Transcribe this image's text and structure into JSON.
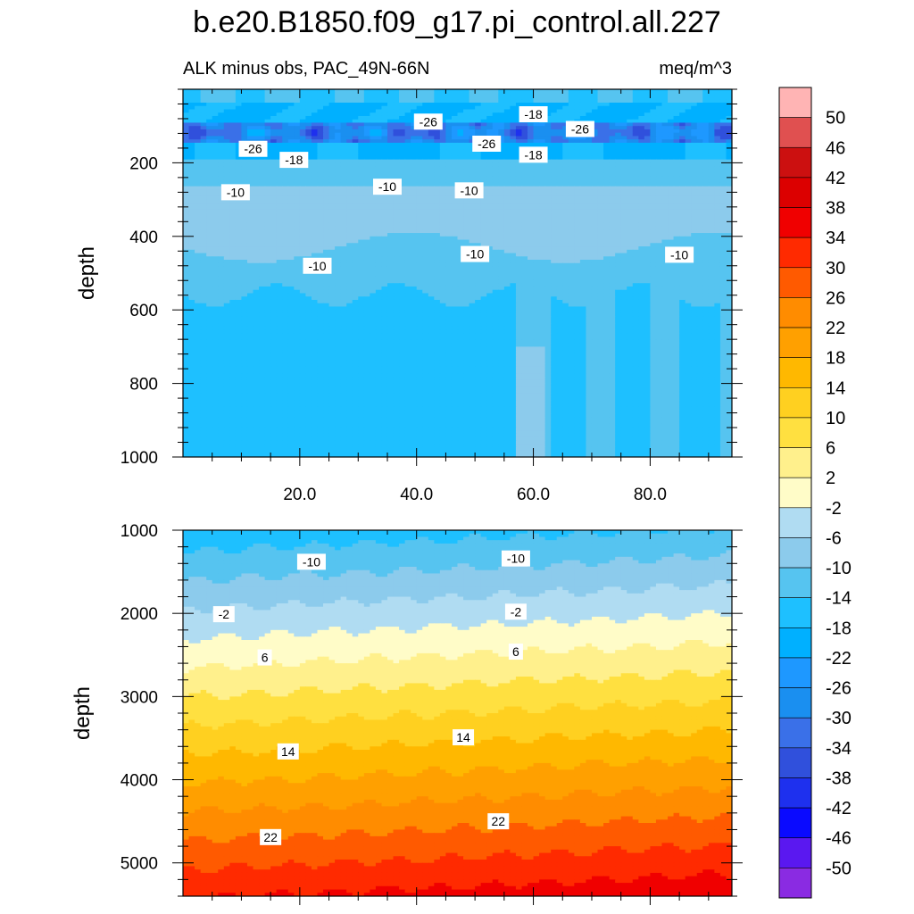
{
  "chart_data": {
    "type": "contour",
    "title": "b.e20.B1850.f09_g17.pi_control.all.227",
    "subtitle_left": "ALK minus obs, PAC_49N-66N",
    "subtitle_right": "meq/m^3",
    "colorbar": {
      "levels": [
        -50,
        -46,
        -42,
        -38,
        -34,
        -30,
        -26,
        -22,
        -18,
        -14,
        -10,
        -6,
        -2,
        2,
        6,
        10,
        14,
        18,
        22,
        26,
        30,
        34,
        38,
        42,
        46,
        50
      ],
      "level_labels": [
        "-50",
        "-46",
        "-42",
        "-38",
        "-34",
        "-30",
        "-26",
        "-22",
        "-18",
        "-14",
        "-10",
        "-6",
        "-2",
        "2",
        "6",
        "10",
        "14",
        "18",
        "22",
        "26",
        "30",
        "34",
        "38",
        "42",
        "46",
        "50"
      ],
      "colors": [
        "#8a2be2",
        "#5a18f0",
        "#0a0aff",
        "#1e30ee",
        "#3050dc",
        "#3a70e8",
        "#1a8ff0",
        "#1e98ff",
        "#00b0ff",
        "#1ec0ff",
        "#56c4f0",
        "#8ccbec",
        "#b0dcf2",
        "#fffcc8",
        "#fff08c",
        "#ffe040",
        "#ffd020",
        "#ffb800",
        "#ffa000",
        "#ff8c00",
        "#ff5a00",
        "#ff2a00",
        "#f00000",
        "#dc0000",
        "#cc1010",
        "#e05050",
        "#ffb4b4"
      ]
    },
    "panels": [
      {
        "position": "top",
        "xlabel": "",
        "ylabel": "depth",
        "x_range": [
          0,
          94
        ],
        "x_ticks": [
          20,
          40,
          60,
          80
        ],
        "x_tick_labels": [
          "20.0",
          "40.0",
          "60.0",
          "80.0"
        ],
        "y_range": [
          0,
          1000
        ],
        "y_ticks": [
          200,
          400,
          600,
          800,
          1000
        ],
        "y_tick_labels": [
          "200",
          "400",
          "600",
          "800",
          "1000"
        ],
        "contour_labels": [
          {
            "text": "-26",
            "x": 42,
            "y": 88
          },
          {
            "text": "-18",
            "x": 60,
            "y": 68
          },
          {
            "text": "-26",
            "x": 68,
            "y": 108
          },
          {
            "text": "-26",
            "x": 12,
            "y": 162
          },
          {
            "text": "-26",
            "x": 52,
            "y": 148
          },
          {
            "text": "-18",
            "x": 19,
            "y": 192
          },
          {
            "text": "-18",
            "x": 60,
            "y": 178
          },
          {
            "text": "-10",
            "x": 9,
            "y": 280
          },
          {
            "text": "-10",
            "x": 35,
            "y": 265
          },
          {
            "text": "-10",
            "x": 49,
            "y": 275
          },
          {
            "text": "-10",
            "x": 23,
            "y": 480
          },
          {
            "text": "-10",
            "x": 50,
            "y": 448
          },
          {
            "text": "-10",
            "x": 85,
            "y": 450
          }
        ]
      },
      {
        "position": "bottom",
        "xlabel": "",
        "ylabel": "depth",
        "x_range": [
          0,
          94
        ],
        "x_ticks": [
          20,
          40,
          60,
          80
        ],
        "y_range": [
          1000,
          5400
        ],
        "y_ticks": [
          1000,
          2000,
          3000,
          4000,
          5000
        ],
        "y_tick_labels": [
          "1000",
          "2000",
          "3000",
          "4000",
          "5000"
        ],
        "contour_labels": [
          {
            "text": "-10",
            "x": 22,
            "y": 1380
          },
          {
            "text": "-10",
            "x": 57,
            "y": 1340
          },
          {
            "text": "-2",
            "x": 7,
            "y": 2010
          },
          {
            "text": "-2",
            "x": 57,
            "y": 1980
          },
          {
            "text": "6",
            "x": 14,
            "y": 2530
          },
          {
            "text": "6",
            "x": 57,
            "y": 2460
          },
          {
            "text": "14",
            "x": 18,
            "y": 3660
          },
          {
            "text": "14",
            "x": 48,
            "y": 3490
          },
          {
            "text": "22",
            "x": 15,
            "y": 4690
          },
          {
            "text": "22",
            "x": 54,
            "y": 4500
          }
        ]
      }
    ]
  }
}
